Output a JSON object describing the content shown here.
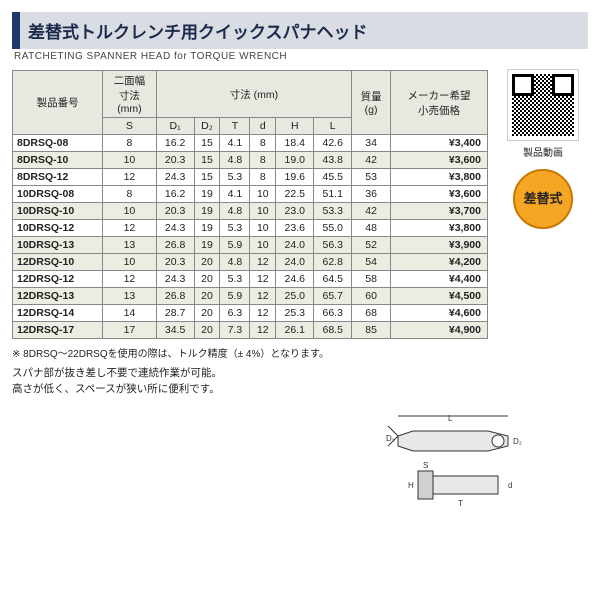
{
  "title_jp": "差替式トルクレンチ用クイックスパナヘッド",
  "title_en": "RATCHETING SPANNER HEAD for TORQUE WRENCH",
  "qr_label": "製品動画",
  "badge": "差替式",
  "headers": {
    "partno": "製品番号",
    "width": "二面幅\n寸法\n(mm)",
    "dims": "寸法 (mm)",
    "mass": "質量\n(g)",
    "price": "メーカー希望\n小売価格",
    "S": "S",
    "D1": "D₁",
    "D2": "D₂",
    "T": "T",
    "d": "d",
    "H": "H",
    "L": "L"
  },
  "rows": [
    {
      "pn": "8DRSQ-08",
      "S": "8",
      "D1": "16.2",
      "D2": "15",
      "T": "4.1",
      "d": "8",
      "H": "18.4",
      "L": "42.6",
      "mass": "34",
      "price": "¥3,400",
      "shade": false
    },
    {
      "pn": "8DRSQ-10",
      "S": "10",
      "D1": "20.3",
      "D2": "15",
      "T": "4.8",
      "d": "8",
      "H": "19.0",
      "L": "43.8",
      "mass": "42",
      "price": "¥3,600",
      "shade": true
    },
    {
      "pn": "8DRSQ-12",
      "S": "12",
      "D1": "24.3",
      "D2": "15",
      "T": "5.3",
      "d": "8",
      "H": "19.6",
      "L": "45.5",
      "mass": "53",
      "price": "¥3,800",
      "shade": false
    },
    {
      "pn": "10DRSQ-08",
      "S": "8",
      "D1": "16.2",
      "D2": "19",
      "T": "4.1",
      "d": "10",
      "H": "22.5",
      "L": "51.1",
      "mass": "36",
      "price": "¥3,600",
      "shade": false
    },
    {
      "pn": "10DRSQ-10",
      "S": "10",
      "D1": "20.3",
      "D2": "19",
      "T": "4.8",
      "d": "10",
      "H": "23.0",
      "L": "53.3",
      "mass": "42",
      "price": "¥3,700",
      "shade": true
    },
    {
      "pn": "10DRSQ-12",
      "S": "12",
      "D1": "24.3",
      "D2": "19",
      "T": "5.3",
      "d": "10",
      "H": "23.6",
      "L": "55.0",
      "mass": "48",
      "price": "¥3,800",
      "shade": false
    },
    {
      "pn": "10DRSQ-13",
      "S": "13",
      "D1": "26.8",
      "D2": "19",
      "T": "5.9",
      "d": "10",
      "H": "24.0",
      "L": "56.3",
      "mass": "52",
      "price": "¥3,900",
      "shade": true
    },
    {
      "pn": "12DRSQ-10",
      "S": "10",
      "D1": "20.3",
      "D2": "20",
      "T": "4.8",
      "d": "12",
      "H": "24.0",
      "L": "62.8",
      "mass": "54",
      "price": "¥4,200",
      "shade": true
    },
    {
      "pn": "12DRSQ-12",
      "S": "12",
      "D1": "24.3",
      "D2": "20",
      "T": "5.3",
      "d": "12",
      "H": "24.6",
      "L": "64.5",
      "mass": "58",
      "price": "¥4,400",
      "shade": false
    },
    {
      "pn": "12DRSQ-13",
      "S": "13",
      "D1": "26.8",
      "D2": "20",
      "T": "5.9",
      "d": "12",
      "H": "25.0",
      "L": "65.7",
      "mass": "60",
      "price": "¥4,500",
      "shade": true
    },
    {
      "pn": "12DRSQ-14",
      "S": "14",
      "D1": "28.7",
      "D2": "20",
      "T": "6.3",
      "d": "12",
      "H": "25.3",
      "L": "66.3",
      "mass": "68",
      "price": "¥4,600",
      "shade": false
    },
    {
      "pn": "12DRSQ-17",
      "S": "17",
      "D1": "34.5",
      "D2": "20",
      "T": "7.3",
      "d": "12",
      "H": "26.1",
      "L": "68.5",
      "mass": "85",
      "price": "¥4,900",
      "shade": true
    }
  ],
  "note": "※ 8DRSQ～22DRSQを使用の際は、トルク精度（± 4%）となります。",
  "desc1": "スパナ部が抜き差し不要で連続作業が可能。",
  "desc2": "高さが低く、スペースが狭い所に便利です。",
  "colors": {
    "accent": "#1b3a6b",
    "titlebg": "#d9dde3",
    "shade": "#ebede2",
    "badge": "#f5a623"
  }
}
